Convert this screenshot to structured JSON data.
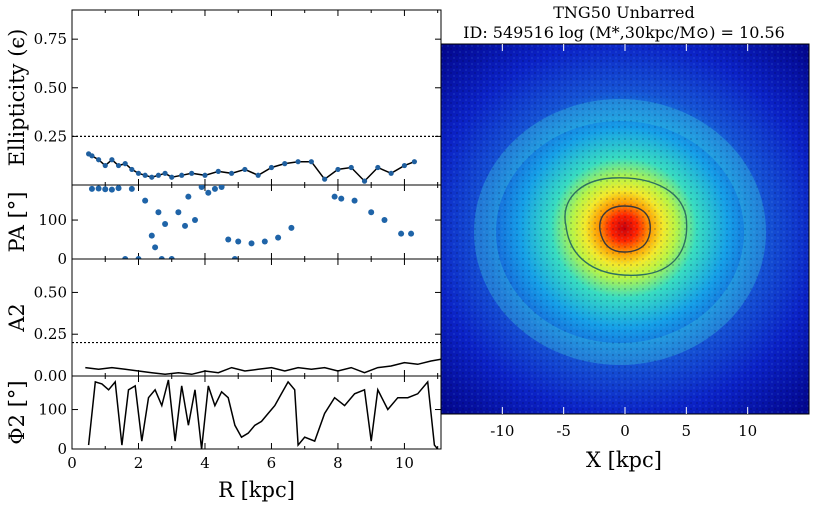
{
  "title_line1": "TNG50 Unbarred",
  "title_line2": "ID: 549516    log (M*,30kpc/M⊙) = 10.56",
  "chart_data": [
    {
      "panel": "ellipticity",
      "type": "line",
      "ylabel": "Ellipticity (ϵ)",
      "xlim": [
        0,
        11.1
      ],
      "ylim": [
        0,
        0.9
      ],
      "yticks": [
        0.25,
        0.5,
        0.75
      ],
      "ytick_labels": [
        "0.25",
        "0.50",
        "0.75"
      ],
      "reference_line": 0.25,
      "x": [
        0.5,
        0.6,
        0.8,
        1.0,
        1.2,
        1.4,
        1.6,
        1.8,
        2.0,
        2.2,
        2.4,
        2.6,
        2.8,
        3.0,
        3.3,
        3.6,
        4.0,
        4.4,
        4.8,
        5.2,
        5.6,
        6.0,
        6.4,
        6.8,
        7.2,
        7.6,
        8.0,
        8.4,
        8.8,
        9.2,
        9.6,
        10.0,
        10.3
      ],
      "y": [
        0.16,
        0.15,
        0.13,
        0.1,
        0.13,
        0.1,
        0.11,
        0.08,
        0.06,
        0.05,
        0.04,
        0.05,
        0.06,
        0.04,
        0.05,
        0.06,
        0.05,
        0.07,
        0.06,
        0.08,
        0.05,
        0.09,
        0.11,
        0.12,
        0.12,
        0.03,
        0.08,
        0.09,
        0.02,
        0.09,
        0.06,
        0.1,
        0.12
      ]
    },
    {
      "panel": "position_angle",
      "type": "scatter",
      "ylabel": "PA [°]",
      "xlim": [
        0,
        11.1
      ],
      "ylim": [
        0,
        190
      ],
      "yticks": [
        0,
        100
      ],
      "ytick_labels": [
        "0",
        "100"
      ],
      "x": [
        0.6,
        0.8,
        1.0,
        1.2,
        1.4,
        1.6,
        1.8,
        2.0,
        2.2,
        2.4,
        2.5,
        2.6,
        2.7,
        2.8,
        3.0,
        3.2,
        3.4,
        3.5,
        3.7,
        3.9,
        4.1,
        4.3,
        4.5,
        4.7,
        4.9,
        5.0,
        5.4,
        5.8,
        6.2,
        6.6,
        7.9,
        8.1,
        8.5,
        9.0,
        9.4,
        9.9,
        10.2
      ],
      "y": [
        180,
        181,
        179,
        178,
        182,
        0,
        180,
        0,
        150,
        60,
        30,
        120,
        0,
        90,
        0,
        120,
        85,
        160,
        100,
        185,
        170,
        180,
        185,
        50,
        0,
        45,
        40,
        45,
        55,
        80,
        160,
        155,
        150,
        120,
        100,
        65,
        65
      ]
    },
    {
      "panel": "A2",
      "type": "line",
      "ylabel": "A2",
      "xlim": [
        0,
        11.1
      ],
      "ylim": [
        0,
        0.7
      ],
      "yticks": [
        0.0,
        0.25,
        0.5
      ],
      "ytick_labels": [
        "0.00",
        "0.25",
        "0.50"
      ],
      "reference_line": 0.2,
      "x": [
        0.4,
        0.8,
        1.2,
        1.6,
        2.0,
        2.4,
        2.8,
        3.2,
        3.6,
        4.0,
        4.4,
        4.8,
        5.2,
        5.6,
        6.0,
        6.4,
        6.8,
        7.2,
        7.6,
        8.0,
        8.4,
        8.8,
        9.2,
        9.6,
        10.0,
        10.4,
        10.8,
        11.1
      ],
      "y": [
        0.05,
        0.04,
        0.05,
        0.04,
        0.03,
        0.02,
        0.01,
        0.02,
        0.01,
        0.03,
        0.02,
        0.05,
        0.03,
        0.04,
        0.05,
        0.03,
        0.05,
        0.04,
        0.05,
        0.03,
        0.05,
        0.02,
        0.05,
        0.06,
        0.08,
        0.07,
        0.09,
        0.1
      ]
    },
    {
      "panel": "Phi2",
      "type": "line",
      "ylabel": "Φ2 [°]",
      "xlabel": "R [kpc]",
      "xlim": [
        0,
        11.1
      ],
      "ylim": [
        0,
        185
      ],
      "xticks": [
        0,
        2,
        4,
        6,
        8,
        10
      ],
      "xtick_labels": [
        "0",
        "2",
        "4",
        "6",
        "8",
        "10"
      ],
      "yticks": [
        0,
        100
      ],
      "ytick_labels": [
        "0",
        "100"
      ],
      "x": [
        0.5,
        0.7,
        0.9,
        1.1,
        1.3,
        1.5,
        1.7,
        1.9,
        2.1,
        2.3,
        2.5,
        2.7,
        2.9,
        3.1,
        3.3,
        3.5,
        3.7,
        3.9,
        4.1,
        4.3,
        4.5,
        4.7,
        4.9,
        5.1,
        5.3,
        5.5,
        5.7,
        5.9,
        6.1,
        6.3,
        6.5,
        6.7,
        6.8,
        7.0,
        7.3,
        7.6,
        7.9,
        8.2,
        8.5,
        8.8,
        9.0,
        9.2,
        9.5,
        9.8,
        10.1,
        10.4,
        10.7,
        10.9,
        11.0
      ],
      "y": [
        10,
        170,
        165,
        150,
        170,
        10,
        150,
        160,
        20,
        130,
        150,
        110,
        175,
        20,
        160,
        60,
        150,
        0,
        160,
        110,
        145,
        130,
        60,
        30,
        40,
        60,
        70,
        90,
        110,
        140,
        170,
        150,
        10,
        30,
        20,
        90,
        130,
        110,
        140,
        150,
        20,
        150,
        100,
        130,
        130,
        140,
        170,
        10,
        0
      ]
    },
    {
      "panel": "image",
      "type": "heatmap",
      "xlabel": "X [kpc]",
      "xlim": [
        -15,
        15
      ],
      "ylim": [
        -15,
        15
      ],
      "xticks": [
        -10,
        -5,
        0,
        5,
        10
      ],
      "xtick_labels": [
        "-10",
        "-5",
        "0",
        "5",
        "10"
      ],
      "colormap": "jet"
    }
  ]
}
